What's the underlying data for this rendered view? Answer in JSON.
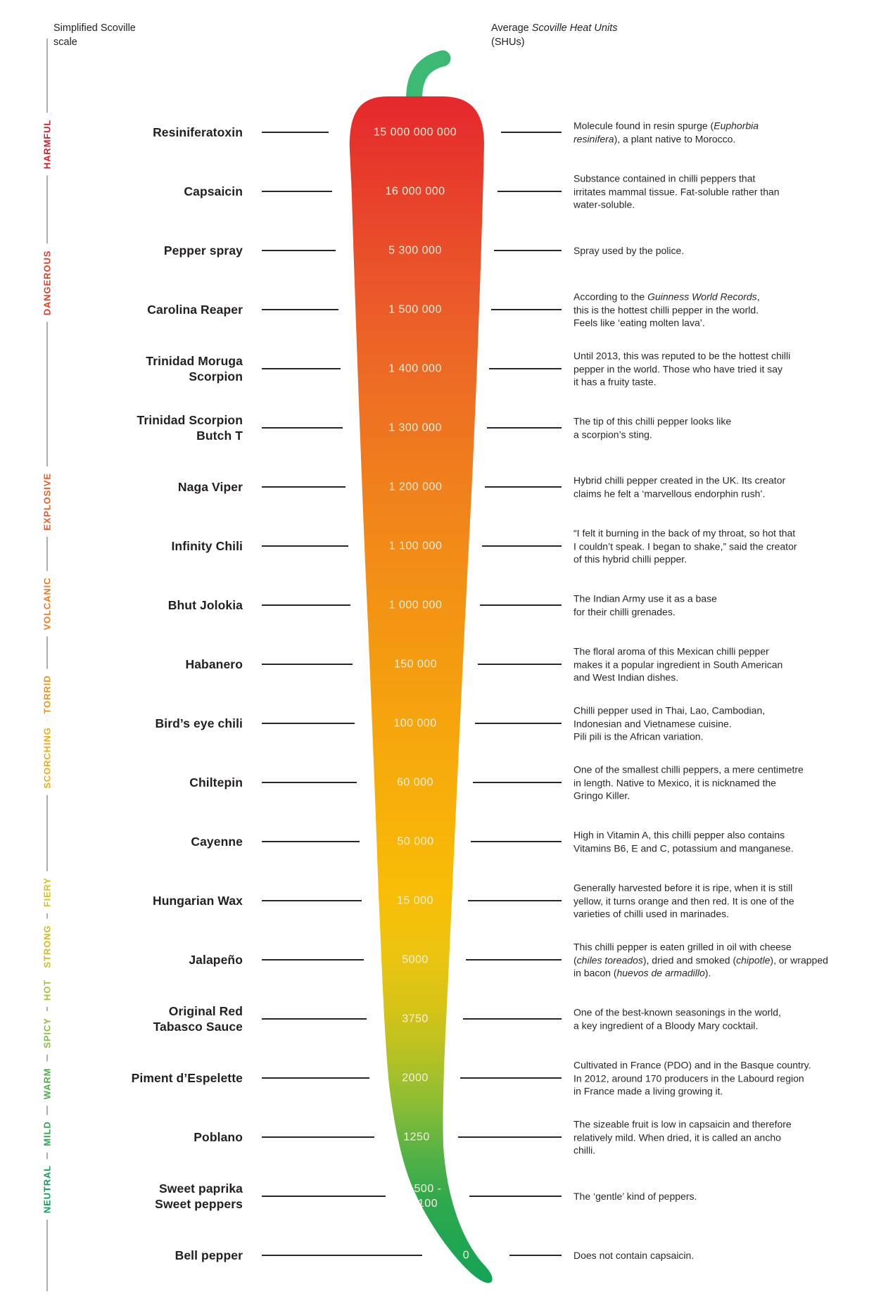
{
  "header": {
    "left_title": "Simplified Scoville\nscale",
    "right_title": "Average *Scoville Heat Units*\n(SHUs)"
  },
  "scale": {
    "labels": [
      {
        "text": "HARMFUL",
        "color": "#d01f2f"
      },
      {
        "text": "DANGEROUS",
        "color": "#e13d26"
      },
      {
        "text": "EXPLOSIVE",
        "color": "#e85b25"
      },
      {
        "text": "VOLCANIC",
        "color": "#ec7b1e"
      },
      {
        "text": "TORRID",
        "color": "#f09315"
      },
      {
        "text": "SCORCHING",
        "color": "#eead10"
      },
      {
        "text": "FIERY",
        "color": "#ddc115"
      },
      {
        "text": "STRONG",
        "color": "#d9b917"
      },
      {
        "text": "HOT",
        "color": "#a3c239"
      },
      {
        "text": "SPICY",
        "color": "#84bd40"
      },
      {
        "text": "WARM",
        "color": "#4cae4b"
      },
      {
        "text": "MILD",
        "color": "#2ba54e"
      },
      {
        "text": "NEUTRAL",
        "color": "#119e55"
      }
    ]
  },
  "rows": [
    {
      "name": "Resiniferatoxin",
      "value": "15 000 000 000",
      "desc": "Molecule found in resin spurge (*Euphorbia\nresinifera*), a plant native to Morocco."
    },
    {
      "name": "Capsaicin",
      "value": "16 000 000",
      "desc": "Substance contained in chilli peppers that\nirritates mammal tissue. Fat-soluble rather than\nwater-soluble."
    },
    {
      "name": "Pepper spray",
      "value": "5 300 000",
      "desc": "Spray used by the police."
    },
    {
      "name": "Carolina Reaper",
      "value": "1 500 000",
      "desc": "According to the *Guinness World Records*,\nthis is the hottest chilli pepper in the world.\nFeels like ‘eating molten lava’."
    },
    {
      "name": "Trinidad Moruga\nScorpion",
      "value": "1 400 000",
      "desc": "Until 2013, this was reputed to be the hottest chilli\npepper in the world. Those who have tried it say\nit has a fruity taste."
    },
    {
      "name": "Trinidad Scorpion\nButch T",
      "value": "1 300 000",
      "desc": "The tip of this chilli pepper looks like\na scorpion’s sting."
    },
    {
      "name": "Naga Viper",
      "value": "1 200 000",
      "desc": "Hybrid chilli pepper created in the UK. Its creator\nclaims he felt a ‘marvellous endorphin rush’."
    },
    {
      "name": "Infinity Chili",
      "value": "1 100 000",
      "desc": "“I felt it burning in the back of my throat, so hot that\nI couldn’t speak. I began to shake,” said the creator\nof this hybrid chilli pepper."
    },
    {
      "name": "Bhut Jolokia",
      "value": "1 000 000",
      "desc": "The Indian Army use it as a base\nfor their chilli grenades."
    },
    {
      "name": "Habanero",
      "value": "150 000",
      "desc": "The floral aroma of this Mexican chilli pepper\nmakes it a popular ingredient in South American\nand West Indian dishes."
    },
    {
      "name": "Bird’s eye chili",
      "value": "100 000",
      "desc": "Chilli pepper used in Thai, Lao, Cambodian,\nIndonesian and Vietnamese cuisine.\nPili pili is the African variation."
    },
    {
      "name": "Chiltepin",
      "value": "60 000",
      "desc": "One of the smallest chilli peppers, a mere centimetre\nin length. Native to Mexico, it is nicknamed the\nGringo Killer."
    },
    {
      "name": "Cayenne",
      "value": "50 000",
      "desc": "High in Vitamin A, this chilli pepper also contains\nVitamins B6, E and C, potassium and manganese."
    },
    {
      "name": "Hungarian Wax",
      "value": "15 000",
      "desc": "Generally harvested before it is ripe, when it is still\nyellow, it turns orange and then red. It is one of the\nvarieties of chilli used in marinades."
    },
    {
      "name": "Jalapeño",
      "value": "5000",
      "desc": "This chilli pepper is eaten grilled in oil with cheese\n(*chiles toreados*), dried and smoked (*chipotle*), or wrapped\nin bacon (*huevos de armadillo*)."
    },
    {
      "name": "Original Red\nTabasco Sauce",
      "value": "3750",
      "desc": "One of the best-known seasonings in the world,\na key ingredient of a Bloody Mary cocktail."
    },
    {
      "name": "Piment d’Espelette",
      "value": "2000",
      "desc": "Cultivated in France (PDO) and in the Basque country.\nIn 2012, around 170 producers in the Labourd region\nin France made a living growing it."
    },
    {
      "name": "Poblano",
      "value": "1250",
      "desc": "The sizeable fruit is low in capsaicin and therefore\nrelatively mild. When dried, it is called an ancho\nchilli."
    },
    {
      "name": "Sweet paprika\nSweet peppers",
      "value": "500 -\n100",
      "desc": "The ‘gentle’ kind of peppers."
    },
    {
      "name": "Bell pepper",
      "value": "0",
      "desc": "Does not contain capsaicin."
    }
  ],
  "colors": {
    "pepper_top": "#e5282c",
    "pepper_mid": "#f6aa0b",
    "pepper_bottom": "#14a356",
    "stem": "#3cb972",
    "value_text": "#f8f1dd",
    "ink": "#231f20",
    "scale_line": "#abadaf"
  },
  "chart_data": {
    "type": "table",
    "title": "Simplified Scoville scale",
    "value_unit": "Average Scoville Heat Units (SHUs)",
    "severity_scale": [
      "HARMFUL",
      "DANGEROUS",
      "EXPLOSIVE",
      "VOLCANIC",
      "TORRID",
      "SCORCHING",
      "FIERY",
      "STRONG",
      "HOT",
      "SPICY",
      "WARM",
      "MILD",
      "NEUTRAL"
    ],
    "items": [
      {
        "name": "Resiniferatoxin",
        "shu": 15000000000
      },
      {
        "name": "Capsaicin",
        "shu": 16000000
      },
      {
        "name": "Pepper spray",
        "shu": 5300000
      },
      {
        "name": "Carolina Reaper",
        "shu": 1500000
      },
      {
        "name": "Trinidad Moruga Scorpion",
        "shu": 1400000
      },
      {
        "name": "Trinidad Scorpion Butch T",
        "shu": 1300000
      },
      {
        "name": "Naga Viper",
        "shu": 1200000
      },
      {
        "name": "Infinity Chili",
        "shu": 1100000
      },
      {
        "name": "Bhut Jolokia",
        "shu": 1000000
      },
      {
        "name": "Habanero",
        "shu": 150000
      },
      {
        "name": "Bird’s eye chili",
        "shu": 100000
      },
      {
        "name": "Chiltepin",
        "shu": 60000
      },
      {
        "name": "Cayenne",
        "shu": 50000
      },
      {
        "name": "Hungarian Wax",
        "shu": 15000
      },
      {
        "name": "Jalapeño",
        "shu": 5000
      },
      {
        "name": "Original Red Tabasco Sauce",
        "shu": 3750
      },
      {
        "name": "Piment d’Espelette",
        "shu": 2000
      },
      {
        "name": "Poblano",
        "shu": 1250
      },
      {
        "name": "Sweet paprika / Sweet peppers",
        "shu": "500-100"
      },
      {
        "name": "Bell pepper",
        "shu": 0
      }
    ]
  }
}
